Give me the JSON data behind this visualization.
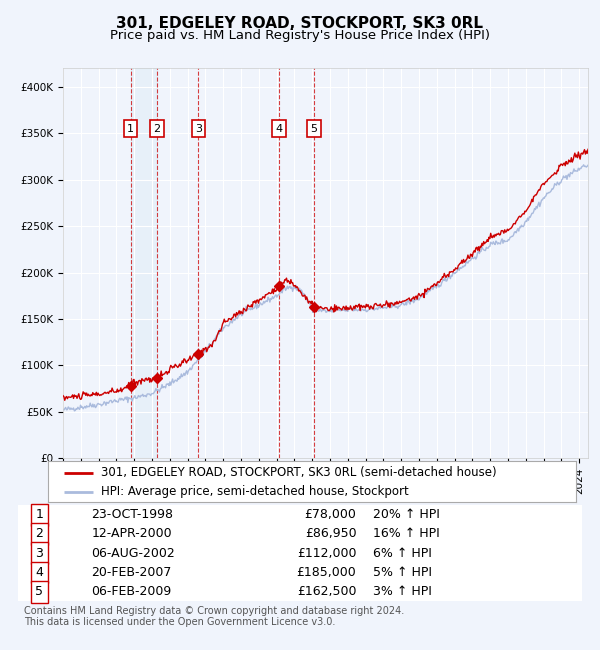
{
  "title": "301, EDGELEY ROAD, STOCKPORT, SK3 0RL",
  "subtitle": "Price paid vs. HM Land Registry's House Price Index (HPI)",
  "property_label": "301, EDGELEY ROAD, STOCKPORT, SK3 0RL (semi-detached house)",
  "hpi_label": "HPI: Average price, semi-detached house, Stockport",
  "footer": "Contains HM Land Registry data © Crown copyright and database right 2024.\nThis data is licensed under the Open Government Licence v3.0.",
  "transactions": [
    {
      "num": 1,
      "date": "23-OCT-1998",
      "price": 78000,
      "hpi_pct": "20% ↑ HPI",
      "year": 1998.81
    },
    {
      "num": 2,
      "date": "12-APR-2000",
      "price": 86950,
      "hpi_pct": "16% ↑ HPI",
      "year": 2000.28
    },
    {
      "num": 3,
      "date": "06-AUG-2002",
      "price": 112000,
      "hpi_pct": "6% ↑ HPI",
      "year": 2002.6
    },
    {
      "num": 4,
      "date": "20-FEB-2007",
      "price": 185000,
      "hpi_pct": "5% ↑ HPI",
      "year": 2007.13
    },
    {
      "num": 5,
      "date": "06-FEB-2009",
      "price": 162500,
      "hpi_pct": "3% ↑ HPI",
      "year": 2009.1
    }
  ],
  "hpi_anchors_y": [
    1995,
    1996,
    1997,
    1998,
    1999,
    2000,
    2001,
    2002,
    2003,
    2004,
    2005,
    2006,
    2007,
    2007.5,
    2008,
    2008.5,
    2009,
    2010,
    2011,
    2012,
    2013,
    2014,
    2015,
    2016,
    2017,
    2018,
    2019,
    2020,
    2021,
    2022,
    2023,
    2024.3
  ],
  "hpi_anchors_v": [
    52000,
    55000,
    58000,
    62000,
    65000,
    70000,
    80000,
    93000,
    115000,
    140000,
    155000,
    165000,
    175000,
    183000,
    185000,
    178000,
    160000,
    158000,
    160000,
    160000,
    162000,
    165000,
    172000,
    185000,
    200000,
    215000,
    230000,
    235000,
    255000,
    280000,
    300000,
    315000
  ],
  "prop_anchors_y": [
    1995,
    1996,
    1997,
    1998,
    1998.81,
    1999,
    2000.28,
    2001,
    2002.6,
    2003.5,
    2004,
    2005,
    2006,
    2007.13,
    2007.5,
    2008,
    2009.1,
    2010,
    2011,
    2012,
    2013,
    2014,
    2015,
    2016,
    2017,
    2018,
    2019,
    2020,
    2021,
    2022,
    2023,
    2024.3
  ],
  "prop_anchors_v": [
    65000,
    67000,
    69000,
    72000,
    78000,
    82000,
    86950,
    95000,
    112000,
    125000,
    145000,
    158000,
    170000,
    185000,
    192000,
    187000,
    162500,
    160000,
    162000,
    163000,
    165000,
    168000,
    175000,
    188000,
    204000,
    220000,
    238000,
    245000,
    268000,
    295000,
    315000,
    330000
  ],
  "ylim": [
    0,
    420000
  ],
  "xlim_start": 1995,
  "xlim_end": 2024.5,
  "plot_bg": "#f0f4fc",
  "grid_color": "#ffffff",
  "red_color": "#cc0000",
  "blue_color": "#aabbdd",
  "box_color": "#cc0000",
  "title_fontsize": 11,
  "subtitle_fontsize": 9.5,
  "tick_fontsize": 7.5,
  "legend_fontsize": 8.5,
  "table_fontsize": 9,
  "footer_fontsize": 7,
  "yticks": [
    0,
    50000,
    100000,
    150000,
    200000,
    250000,
    300000,
    350000,
    400000
  ],
  "ylabels": [
    "£0",
    "£50K",
    "£100K",
    "£150K",
    "£200K",
    "£250K",
    "£300K",
    "£350K",
    "£400K"
  ]
}
